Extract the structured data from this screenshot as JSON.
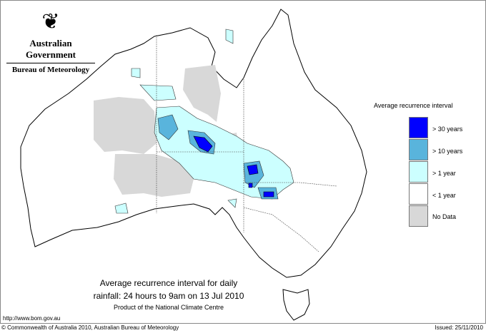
{
  "logo": {
    "government": "Australian Government",
    "bureau": "Bureau of Meteorology"
  },
  "legend": {
    "title": "Average recurrence interval",
    "items": [
      {
        "label": "> 30 years",
        "color": "#0000ff"
      },
      {
        "label": "> 10 years",
        "color": "#59b4dc"
      },
      {
        "label": "> 1 year",
        "color": "#ccffff"
      },
      {
        "label": "< 1 year",
        "color": "#ffffff"
      },
      {
        "label": "No Data",
        "color": "#d8d8d8"
      }
    ]
  },
  "title": {
    "line1": "Average recurrence interval for daily",
    "line2": "rainfall: 24 hours to 9am on 13 Jul 2010",
    "line3": "Product of the National Climate Centre"
  },
  "url": "http://www.bom.gov.au",
  "footer": {
    "copyright": "© Commonwealth of Australia 2010, Australian Bureau of Meteorology",
    "issued": "Issued: 25/11/2010"
  }
}
